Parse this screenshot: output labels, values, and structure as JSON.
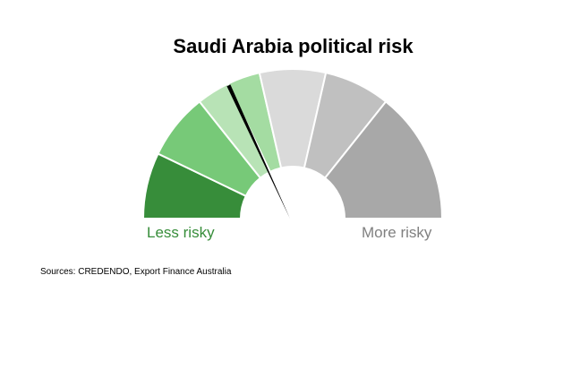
{
  "chart_data": {
    "type": "gauge",
    "title": "Saudi Arabia political risk",
    "scale_min": 0,
    "scale_max": 7,
    "value": 2.5,
    "segments": [
      {
        "from": 0,
        "to": 1,
        "color": "#378d3a"
      },
      {
        "from": 1,
        "to": 2,
        "color": "#77c978"
      },
      {
        "from": 2,
        "to": 2.5,
        "color": "#b8e3b6"
      },
      {
        "from": 2.5,
        "to": 3,
        "color": "#a4dca2"
      },
      {
        "from": 3,
        "to": 4,
        "color": "#dadada"
      },
      {
        "from": 4,
        "to": 5,
        "color": "#c0c0c0"
      },
      {
        "from": 5,
        "to": 7,
        "color": "#a8a8a8"
      }
    ],
    "low_label": "Less risky",
    "high_label": "More risky",
    "low_color": "#378d3a",
    "high_color": "#808080",
    "needle_color": "#000000"
  },
  "source": "Sources: CREDENDO, Export Finance Australia"
}
